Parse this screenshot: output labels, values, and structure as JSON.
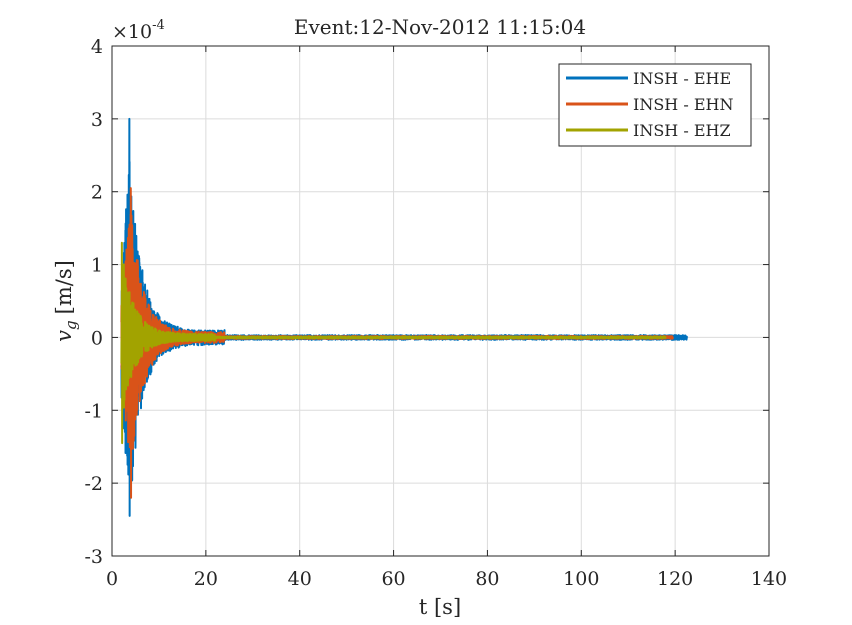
{
  "chart_data": {
    "type": "line",
    "title": "Event:12-Nov-2012 11:15:04",
    "xlabel": "t [s]",
    "ylabel": "v_g [m/s]",
    "ylabel_main": "v",
    "ylabel_sub": "g",
    "ylabel_units": "[m/s]",
    "y_exponent_label": "×10",
    "y_exponent": "-4",
    "xlim": [
      0,
      140
    ],
    "ylim": [
      -3,
      4
    ],
    "xticks": [
      "0",
      "20",
      "40",
      "60",
      "80",
      "100",
      "120",
      "140"
    ],
    "yticks": [
      "-3",
      "-2",
      "-1",
      "0",
      "1",
      "2",
      "3",
      "4"
    ],
    "grid": true,
    "legend_position": "top-right",
    "series": [
      {
        "name": "INSH - EHE",
        "color": "#0072BD",
        "x_range": [
          2.0,
          122.5
        ],
        "peaks": [
          3.0,
          -2.45
        ],
        "peak_time": 3.7,
        "decay_end": 24,
        "noise": 0.012
      },
      {
        "name": "INSH - EHN",
        "color": "#D95319",
        "x_range": [
          2.0,
          119.5
        ],
        "peaks": [
          2.05,
          -2.2
        ],
        "peak_time": 4.0,
        "decay_end": 24,
        "noise": 0.01
      },
      {
        "name": "INSH - EHZ",
        "color": "#A2A300",
        "x_range": [
          2.0,
          118.0
        ],
        "peaks": [
          1.3,
          -1.45
        ],
        "peak_time": 2.1,
        "decay_end": 22,
        "noise": 0.008
      }
    ]
  }
}
